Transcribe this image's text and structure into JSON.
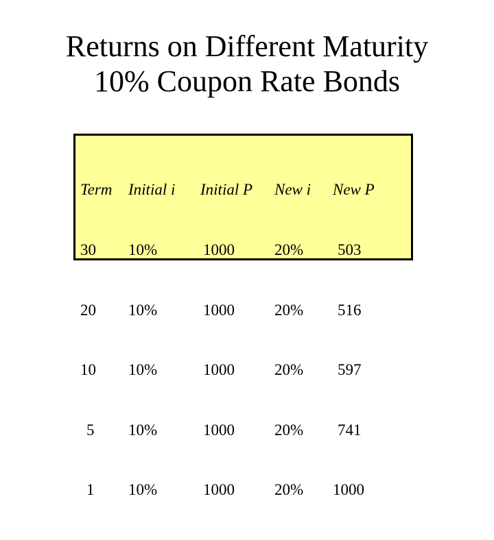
{
  "title": {
    "line1": "Returns on Different Maturity",
    "line2": "10% Coupon Rate Bonds"
  },
  "table": {
    "headers": [
      "Term",
      "Initial i",
      "Initial P",
      "New i",
      "New P"
    ],
    "rows": [
      [
        "30",
        "10%",
        "1000",
        "20%",
        "503"
      ],
      [
        "20",
        "10%",
        "1000",
        "20%",
        "516"
      ],
      [
        "10",
        "10%",
        "1000",
        "20%",
        "597"
      ],
      [
        "5",
        "10%",
        "1000",
        "20%",
        "741"
      ],
      [
        "1",
        "10%",
        "1000",
        "20%",
        "1000"
      ]
    ]
  },
  "colors": {
    "table_background": "#ffff99",
    "table_border": "#000000",
    "text": "#000000",
    "page_background": "#ffffff"
  }
}
